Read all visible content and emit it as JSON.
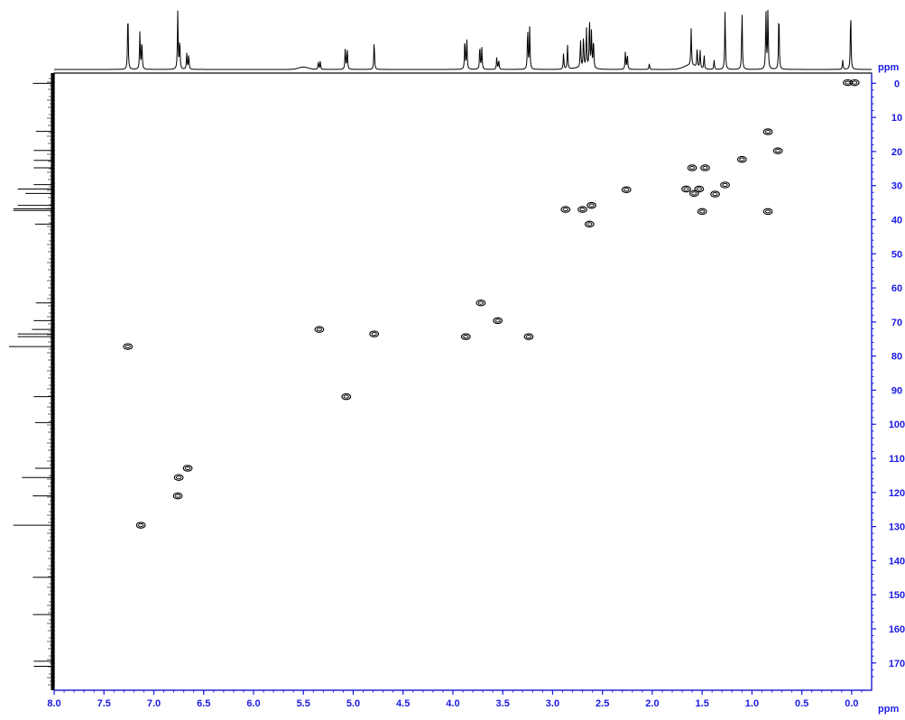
{
  "chart_data": {
    "type": "scatter",
    "subtype": "2D NMR HSQC correlation contour plot",
    "title": "",
    "xlabel": "ppm",
    "ylabel": "ppm",
    "x_reversed": true,
    "xlim": [
      8.0,
      -0.2
    ],
    "ylim": [
      -3,
      178
    ],
    "x_ticks": [
      8.0,
      7.5,
      7.0,
      6.5,
      6.0,
      5.5,
      5.0,
      4.5,
      4.0,
      3.5,
      3.0,
      2.5,
      2.0,
      1.5,
      1.0,
      0.5,
      0.0
    ],
    "x_tick_labels": [
      "8.0",
      "7.5",
      "7.0",
      "6.5",
      "6.0",
      "5.5",
      "5.0",
      "4.5",
      "4.0",
      "3.5",
      "3.0",
      "2.5",
      "2.0",
      "1.5",
      "1.0",
      "0.5",
      "0.0"
    ],
    "y_ticks": [
      0,
      10,
      20,
      30,
      40,
      50,
      60,
      70,
      80,
      90,
      100,
      110,
      120,
      130,
      140,
      150,
      160,
      170
    ],
    "y_tick_labels": [
      "0",
      "10",
      "20",
      "30",
      "40",
      "50",
      "60",
      "70",
      "80",
      "90",
      "100",
      "110",
      "120",
      "130",
      "140",
      "150",
      "160",
      "170"
    ],
    "grid": false,
    "axis_color": "#1a1ae6",
    "cross_peaks": [
      {
        "x": 0.04,
        "y": -0.2
      },
      {
        "x": -0.03,
        "y": -0.2
      },
      {
        "x": 0.84,
        "y": 14.2
      },
      {
        "x": 0.74,
        "y": 19.8
      },
      {
        "x": 1.1,
        "y": 22.3
      },
      {
        "x": 1.6,
        "y": 24.8
      },
      {
        "x": 1.47,
        "y": 24.8
      },
      {
        "x": 1.27,
        "y": 29.8
      },
      {
        "x": 1.66,
        "y": 31.0
      },
      {
        "x": 1.53,
        "y": 31.0
      },
      {
        "x": 1.37,
        "y": 32.5
      },
      {
        "x": 1.58,
        "y": 32.3
      },
      {
        "x": 2.26,
        "y": 31.2
      },
      {
        "x": 2.87,
        "y": 37.0
      },
      {
        "x": 2.7,
        "y": 37.0
      },
      {
        "x": 2.61,
        "y": 35.8
      },
      {
        "x": 1.5,
        "y": 37.6
      },
      {
        "x": 0.84,
        "y": 37.6
      },
      {
        "x": 2.63,
        "y": 41.3
      },
      {
        "x": 3.72,
        "y": 64.4
      },
      {
        "x": 3.55,
        "y": 69.6
      },
      {
        "x": 5.34,
        "y": 72.2
      },
      {
        "x": 4.79,
        "y": 73.5
      },
      {
        "x": 3.87,
        "y": 74.3
      },
      {
        "x": 3.24,
        "y": 74.3
      },
      {
        "x": 7.26,
        "y": 77.2
      },
      {
        "x": 5.07,
        "y": 91.9
      },
      {
        "x": 6.66,
        "y": 112.9
      },
      {
        "x": 6.75,
        "y": 115.6
      },
      {
        "x": 6.76,
        "y": 121.0
      },
      {
        "x": 7.13,
        "y": 129.6
      }
    ],
    "proton_spectrum_peaks": [
      {
        "x": 7.26,
        "h": 1.0
      },
      {
        "x": 7.14,
        "h": 0.62
      },
      {
        "x": 7.12,
        "h": 0.5
      },
      {
        "x": 6.76,
        "h": 0.97
      },
      {
        "x": 6.74,
        "h": 0.5
      },
      {
        "x": 6.67,
        "h": 0.27
      },
      {
        "x": 6.65,
        "h": 0.25
      },
      {
        "x": 5.35,
        "h": 0.13
      },
      {
        "x": 5.33,
        "h": 0.13
      },
      {
        "x": 5.08,
        "h": 0.36
      },
      {
        "x": 5.06,
        "h": 0.36
      },
      {
        "x": 4.79,
        "h": 0.48
      },
      {
        "x": 3.88,
        "h": 0.52
      },
      {
        "x": 3.86,
        "h": 0.5
      },
      {
        "x": 3.73,
        "h": 0.41
      },
      {
        "x": 3.71,
        "h": 0.36
      },
      {
        "x": 3.56,
        "h": 0.2
      },
      {
        "x": 3.54,
        "h": 0.16
      },
      {
        "x": 3.25,
        "h": 0.7
      },
      {
        "x": 3.23,
        "h": 0.7
      },
      {
        "x": 2.89,
        "h": 0.27
      },
      {
        "x": 2.85,
        "h": 0.4
      },
      {
        "x": 2.72,
        "h": 0.48
      },
      {
        "x": 2.69,
        "h": 0.55
      },
      {
        "x": 2.66,
        "h": 0.65
      },
      {
        "x": 2.63,
        "h": 0.85
      },
      {
        "x": 2.61,
        "h": 0.6
      },
      {
        "x": 2.59,
        "h": 0.5
      },
      {
        "x": 2.27,
        "h": 0.3
      },
      {
        "x": 2.25,
        "h": 0.26
      },
      {
        "x": 2.03,
        "h": 0.1
      },
      {
        "x": 1.61,
        "h": 0.62
      },
      {
        "x": 1.55,
        "h": 0.32
      },
      {
        "x": 1.52,
        "h": 0.3
      },
      {
        "x": 1.48,
        "h": 0.24
      },
      {
        "x": 1.38,
        "h": 0.16
      },
      {
        "x": 1.27,
        "h": 1.0
      },
      {
        "x": 1.1,
        "h": 1.0
      },
      {
        "x": 0.86,
        "h": 1.0
      },
      {
        "x": 0.84,
        "h": 1.0
      },
      {
        "x": 0.73,
        "h": 1.0
      },
      {
        "x": 0.09,
        "h": 0.16
      },
      {
        "x": 0.01,
        "h": 1.0
      }
    ],
    "carbon_spectrum_peaks": [
      {
        "y": 0.0,
        "h": 0.45
      },
      {
        "y": 14.1,
        "h": 0.38
      },
      {
        "y": 19.7,
        "h": 0.43
      },
      {
        "y": 22.6,
        "h": 0.43
      },
      {
        "y": 24.8,
        "h": 0.43
      },
      {
        "y": 29.7,
        "h": 0.43
      },
      {
        "y": 31.0,
        "h": 0.8
      },
      {
        "y": 32.3,
        "h": 0.62
      },
      {
        "y": 35.8,
        "h": 0.8
      },
      {
        "y": 36.8,
        "h": 0.9
      },
      {
        "y": 37.3,
        "h": 0.9
      },
      {
        "y": 41.3,
        "h": 0.4
      },
      {
        "y": 64.4,
        "h": 0.38
      },
      {
        "y": 69.6,
        "h": 0.43
      },
      {
        "y": 72.2,
        "h": 0.47
      },
      {
        "y": 73.5,
        "h": 0.8
      },
      {
        "y": 74.3,
        "h": 0.8
      },
      {
        "y": 77.2,
        "h": 1.0
      },
      {
        "y": 91.9,
        "h": 0.43
      },
      {
        "y": 99.5,
        "h": 0.4
      },
      {
        "y": 112.9,
        "h": 0.4
      },
      {
        "y": 115.6,
        "h": 0.7
      },
      {
        "y": 121.0,
        "h": 0.45
      },
      {
        "y": 129.6,
        "h": 0.9
      },
      {
        "y": 144.9,
        "h": 0.45
      },
      {
        "y": 155.8,
        "h": 0.45
      },
      {
        "y": 169.5,
        "h": 0.43
      },
      {
        "y": 171.0,
        "h": 0.43
      }
    ]
  }
}
